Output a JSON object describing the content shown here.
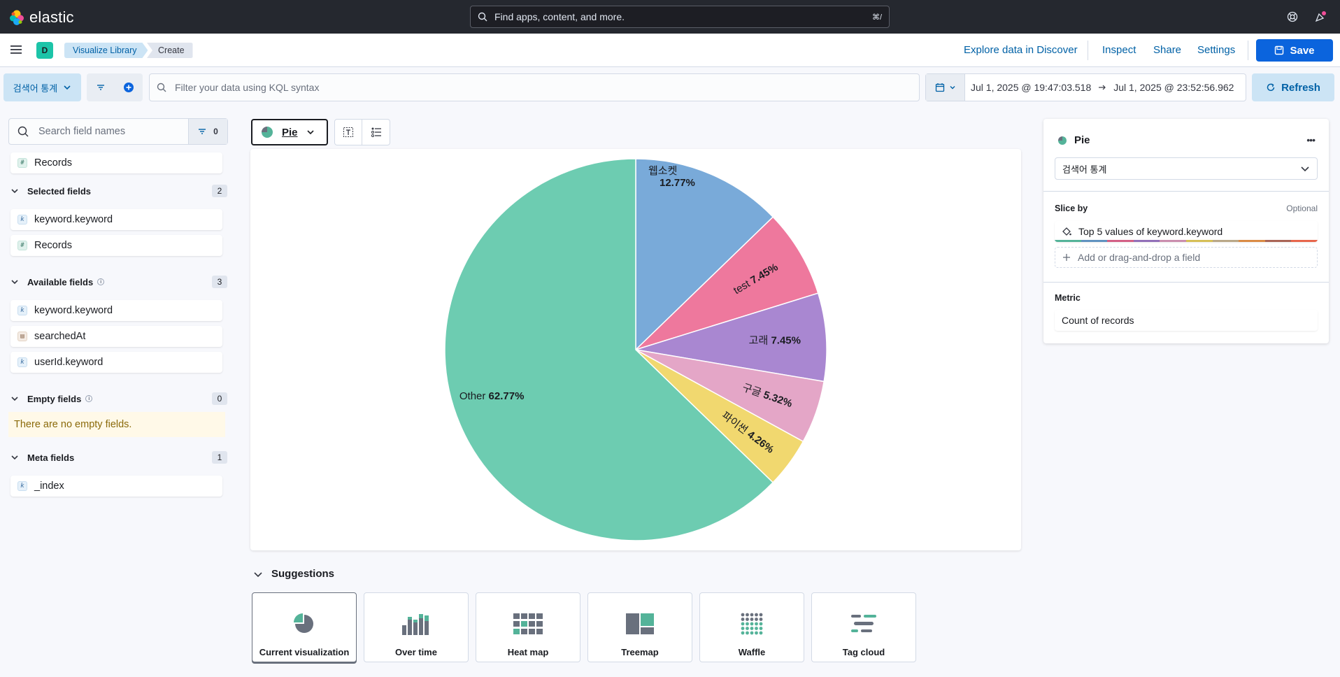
{
  "header": {
    "logo_text": "elastic",
    "search_placeholder": "Find apps, content, and more.",
    "search_shortcut": "⌘/"
  },
  "nav": {
    "space_initial": "D",
    "breadcrumbs": [
      "Visualize Library",
      "Create"
    ],
    "links": [
      "Explore data in Discover",
      "Inspect",
      "Share",
      "Settings"
    ],
    "save_label": "Save",
    "accent": "#0b64dd"
  },
  "query": {
    "data_view": "검색어 통계",
    "kql_placeholder": "Filter your data using KQL syntax",
    "date_start": "Jul 1, 2025 @ 19:47:03.518",
    "date_end": "Jul 1, 2025 @ 23:52:56.962",
    "refresh_label": "Refresh"
  },
  "sidebar": {
    "search_placeholder": "Search field names",
    "filter_count": "0",
    "records_label": "Records",
    "selected": {
      "title": "Selected fields",
      "count": "2",
      "items": [
        "keyword.keyword",
        "Records"
      ]
    },
    "available": {
      "title": "Available fields",
      "count": "3",
      "items": [
        "keyword.keyword",
        "searchedAt",
        "userId.keyword"
      ]
    },
    "empty": {
      "title": "Empty fields",
      "count": "0",
      "message": "There are no empty fields."
    },
    "meta": {
      "title": "Meta fields",
      "count": "1",
      "items": [
        "_index"
      ]
    }
  },
  "workspace": {
    "chart_type": "Pie",
    "suggestions_title": "Suggestions",
    "suggestions": [
      "Current visualization",
      "Over time",
      "Heat map",
      "Treemap",
      "Waffle",
      "Tag cloud"
    ]
  },
  "chart_data": {
    "type": "pie",
    "slices": [
      {
        "label": "웹소켓",
        "value": 12.77,
        "display": "12.77%",
        "color": "#79aad9"
      },
      {
        "label": "test",
        "value": 7.45,
        "display": "7.45%",
        "color": "#ee789d"
      },
      {
        "label": "고래",
        "value": 7.45,
        "display": "7.45%",
        "color": "#a987d1"
      },
      {
        "label": "구글",
        "value": 5.32,
        "display": "5.32%",
        "color": "#e4a6c7"
      },
      {
        "label": "파이썬",
        "value": 4.26,
        "display": "4.26%",
        "color": "#f1d86f"
      },
      {
        "label": "Other",
        "value": 62.77,
        "display": "62.77%",
        "color": "#6dccb1"
      }
    ]
  },
  "config": {
    "title": "Pie",
    "data_view": "검색어 통계",
    "slice_by_label": "Slice by",
    "optional_label": "Optional",
    "slice_by_value": "Top 5 values of keyword.keyword",
    "add_field_label": "Add or drag-and-drop a field",
    "metric_label": "Metric",
    "metric_value": "Count of records"
  }
}
